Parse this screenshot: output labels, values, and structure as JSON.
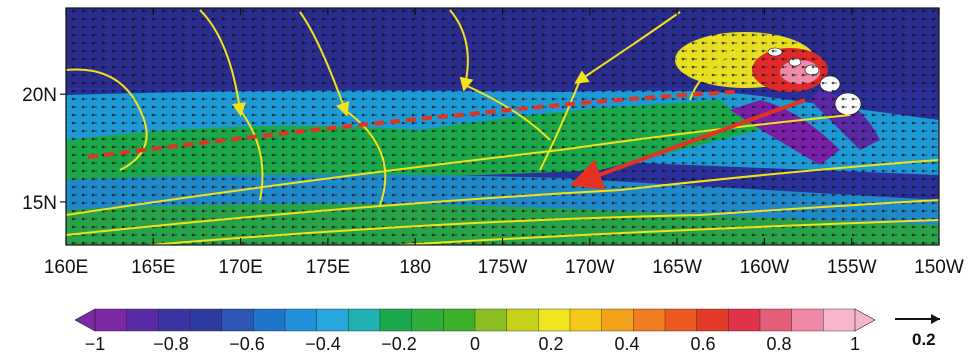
{
  "map": {
    "x_axis": {
      "ticks": [
        "160E",
        "165E",
        "170E",
        "175E",
        "180",
        "175W",
        "170W",
        "165W",
        "160W",
        "155W",
        "150W"
      ],
      "range_deg_east": [
        160,
        210
      ]
    },
    "y_axis": {
      "ticks": [
        "20N",
        "15N"
      ],
      "tick_values_deg_north": [
        20,
        15
      ],
      "range_deg_north": [
        13,
        24
      ]
    },
    "field_colors": {
      "strong_negative": "#7a1fa8",
      "negative": "#2b2f9a",
      "weak_negative": "#1c9ad6",
      "near_zero": "#1aa84a",
      "positive": "#e8e020",
      "strong_positive": "#e02a2a"
    },
    "overlays": {
      "wind_vectors": "black dot-arrows",
      "streamlines_color": "#f2e21a",
      "dashed_line_color": "#e43322",
      "solid_arrow_color": "#e43322",
      "islands": "Hawaiian Islands"
    }
  },
  "colorbar": {
    "tick_values": [
      -1,
      -0.8,
      -0.6,
      -0.4,
      -0.2,
      0,
      0.2,
      0.4,
      0.6,
      0.8,
      1
    ],
    "tick_labels": [
      "−1",
      "−0.8",
      "−0.6",
      "−0.4",
      "−0.2",
      "0",
      "0.2",
      "0.4",
      "0.6",
      "0.8",
      "1"
    ],
    "colors": [
      "#7b2aa6",
      "#5a2aa6",
      "#3b34a5",
      "#2c3c9e",
      "#2d56b8",
      "#1f74cc",
      "#1e8fd8",
      "#26a7de",
      "#1fb0b0",
      "#1aa84a",
      "#2fae3a",
      "#3cb02c",
      "#8bbf22",
      "#c6d11c",
      "#f0e51c",
      "#f5c81c",
      "#f4a41c",
      "#f07c1e",
      "#ec5a22",
      "#e43a2a",
      "#de3348",
      "#e65f7a",
      "#f08aa8",
      "#f5b6cc"
    ]
  },
  "reference_vector": {
    "label": "0.2"
  }
}
